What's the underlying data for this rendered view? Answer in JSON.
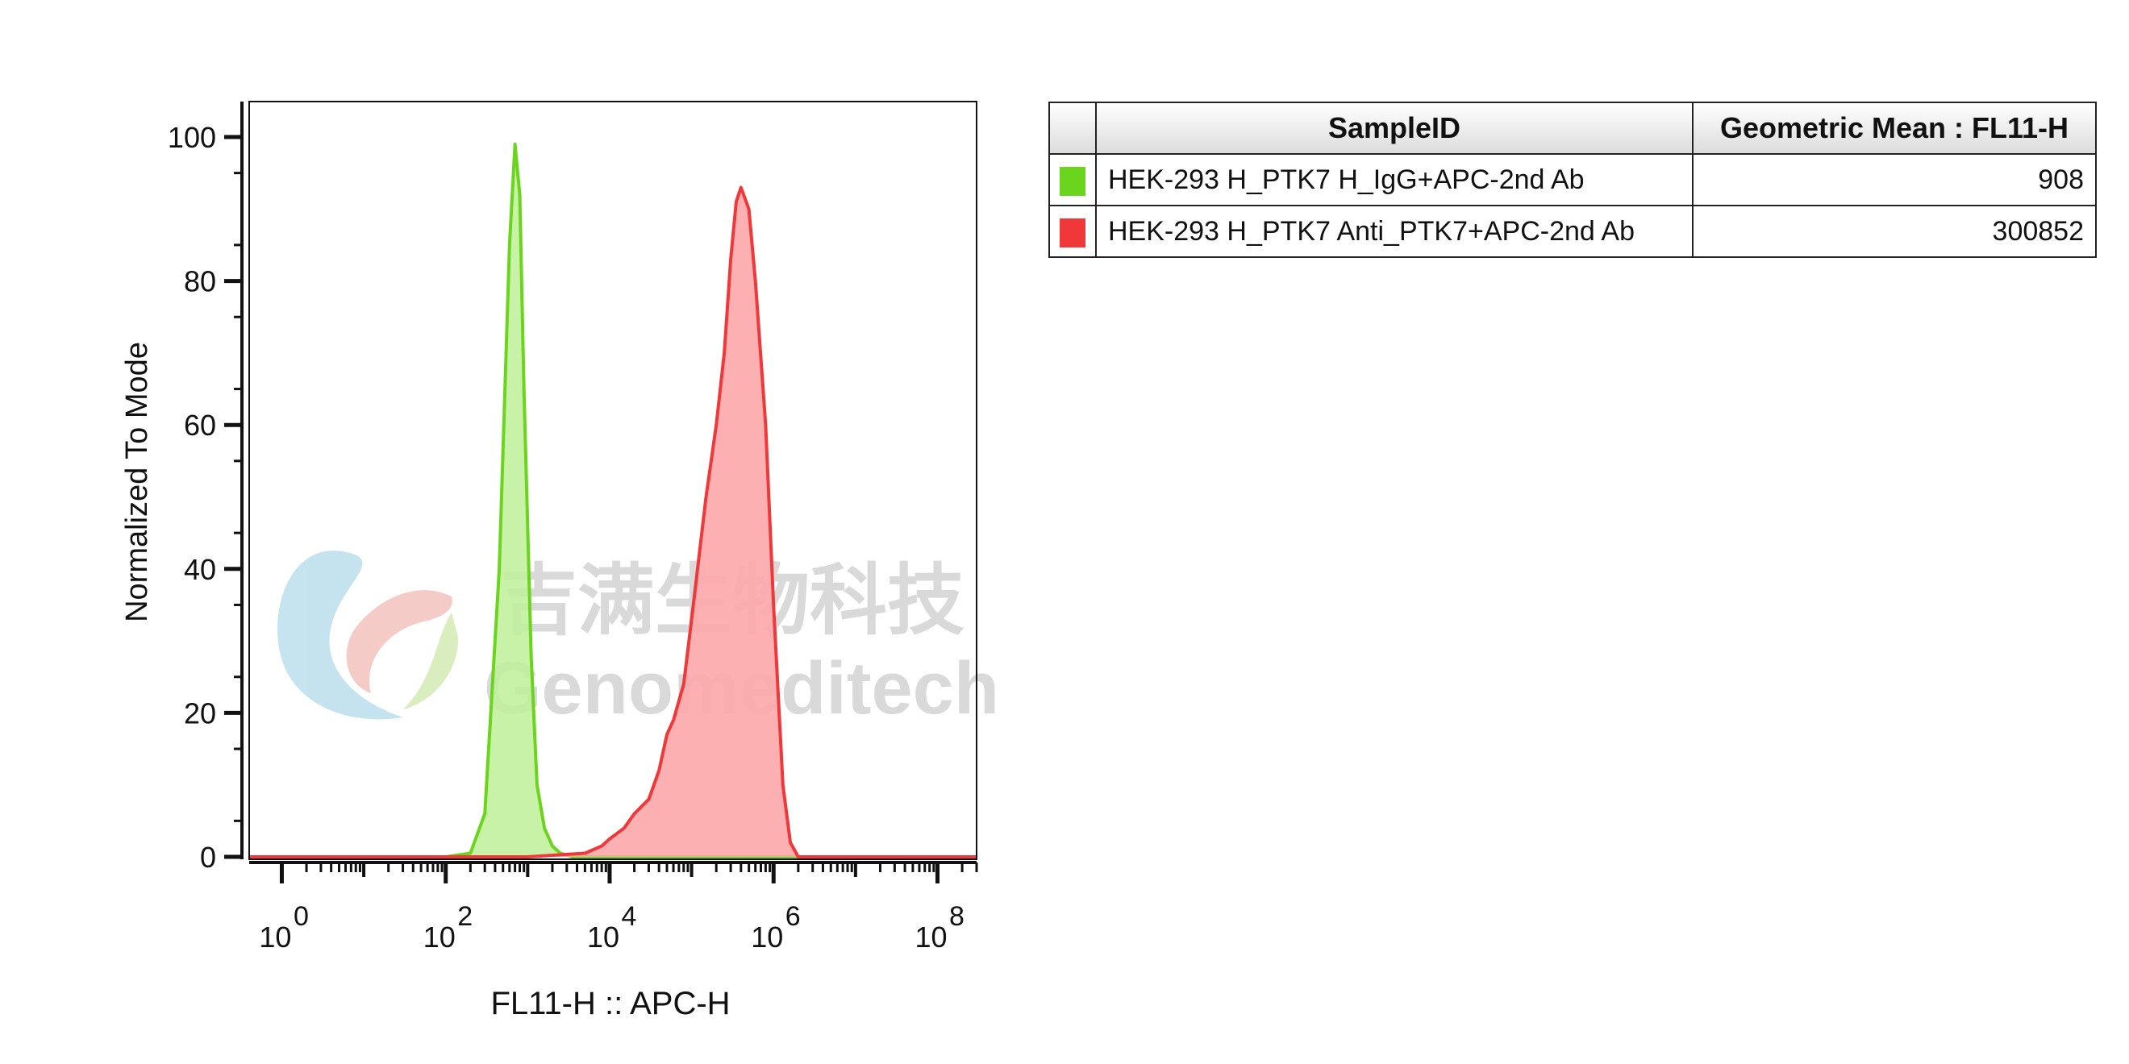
{
  "chart_data": {
    "type": "area",
    "title": "",
    "xlabel": "FL11-H :: APC-H",
    "ylabel": "Normalized To Mode",
    "xscale": "log",
    "xlim": [
      0.4,
      300000000
    ],
    "ylim": [
      0,
      105
    ],
    "y_ticks": [
      "0",
      "20",
      "40",
      "60",
      "80",
      "100"
    ],
    "x_ticks": [
      {
        "base": "10",
        "exp": "0"
      },
      {
        "base": "10",
        "exp": "2"
      },
      {
        "base": "10",
        "exp": "4"
      },
      {
        "base": "10",
        "exp": "6"
      },
      {
        "base": "10",
        "exp": "8"
      }
    ],
    "series": [
      {
        "name": "HEK-293 H_PTK7 H_IgG+APC-2nd Ab",
        "color": "#6ad51c",
        "fill": "#bff09a",
        "x": [
          0.4,
          100,
          200,
          300,
          450,
          600,
          700,
          800,
          900,
          1100,
          1300,
          1600,
          2000,
          2500,
          3500,
          6000,
          300000000
        ],
        "y": [
          0,
          0,
          0.5,
          6,
          40,
          85,
          99,
          92,
          65,
          28,
          10,
          4,
          1.5,
          0.5,
          0,
          0,
          0
        ]
      },
      {
        "name": "HEK-293 H_PTK7 Anti_PTK7+APC-2nd Ab",
        "color": "#f0383a",
        "fill": "#fda7aa",
        "x": [
          0.4,
          1000,
          5000,
          8000,
          10000,
          15000,
          20000,
          30000,
          40000,
          50000,
          60000,
          80000,
          100000,
          150000,
          200000,
          250000,
          300000,
          350000,
          400000,
          500000,
          600000,
          800000,
          1000000,
          1300000,
          1600000,
          2000000,
          300000000
        ],
        "y": [
          0,
          0,
          0.5,
          1.5,
          2.5,
          4,
          6,
          8,
          12,
          17,
          19,
          24,
          33,
          50,
          60,
          70,
          83,
          91,
          93,
          90,
          80,
          60,
          35,
          10,
          2,
          0,
          0
        ]
      }
    ],
    "legend": {
      "placement": "right",
      "headers": [
        "SampleID",
        "Geometric Mean : FL11-H"
      ],
      "rows": [
        {
          "sample": "HEK-293 H_PTK7 H_IgG+APC-2nd Ab",
          "value": "908",
          "color": "#6ad51c"
        },
        {
          "sample": "HEK-293 H_PTK7 Anti_PTK7+APC-2nd Ab",
          "value": "300852",
          "color": "#f0383a"
        }
      ]
    },
    "watermark": {
      "cn": "吉满生物科技",
      "en": "Genomeditech"
    }
  }
}
